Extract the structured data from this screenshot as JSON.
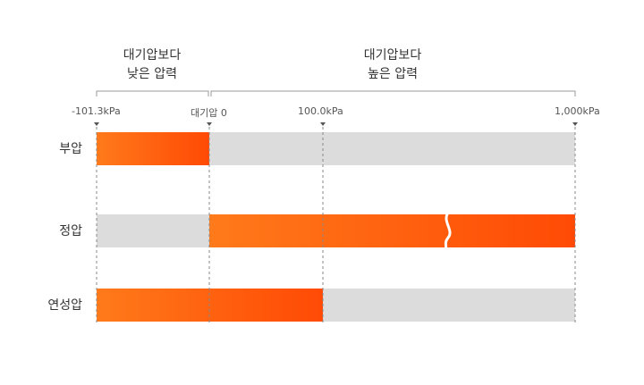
{
  "headers": {
    "left": {
      "line1": "대기압보다",
      "line2": "낮은 압력"
    },
    "right": {
      "line1": "대기압보다",
      "line2": "높은 압력"
    }
  },
  "ticks": {
    "min": "-101.3kPa",
    "atm": "대기압 0",
    "mid": "100.0kPa",
    "max": "1,000kPa"
  },
  "rows": [
    {
      "label": "부압",
      "filled_from": "-101.3kPa",
      "filled_to": "대기압 0"
    },
    {
      "label": "정압",
      "filled_from": "대기압 0",
      "filled_to": "1,000kPa",
      "break": true
    },
    {
      "label": "연성압",
      "filled_from": "-101.3kPa",
      "filled_to": "100.0kPa"
    }
  ],
  "colors": {
    "fill_start": "#ff7a1a",
    "fill_end": "#ff4a05",
    "track": "#dcdcdc",
    "bracket": "#999999",
    "guide": "#888888"
  }
}
